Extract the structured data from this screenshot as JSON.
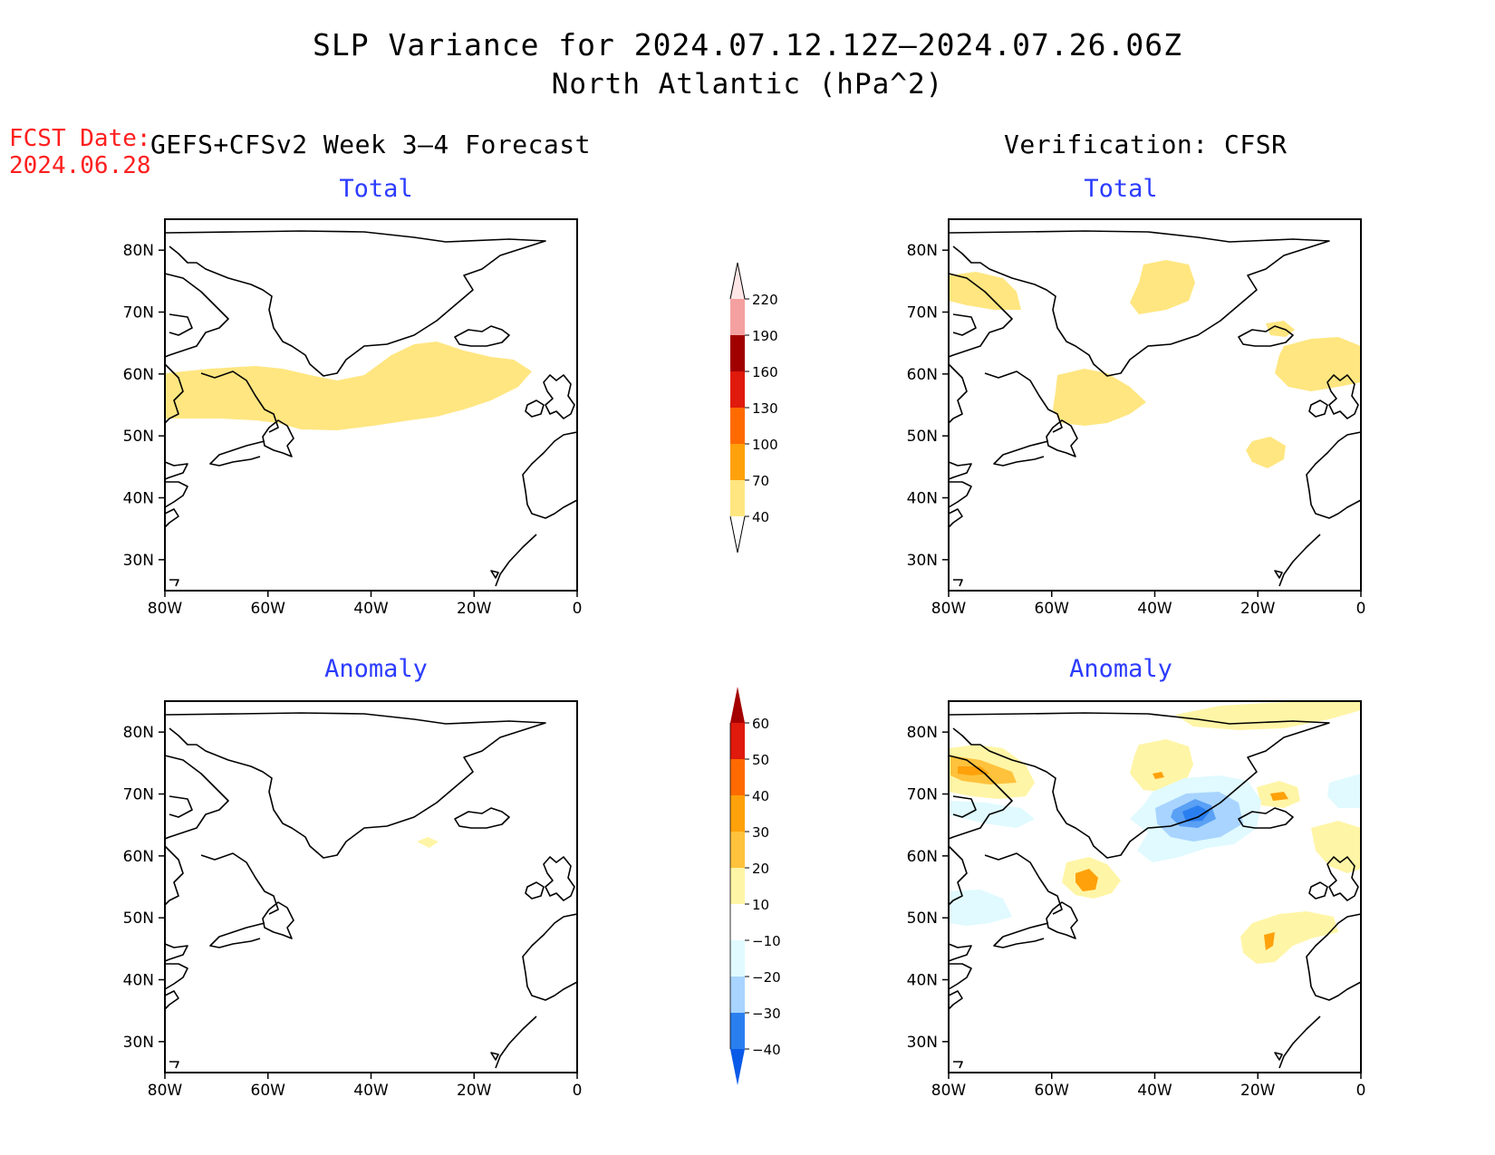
{
  "title": {
    "line1": "SLP Variance for 2024.07.12.12Z–2024.07.26.06Z",
    "line2": "North Atlantic (hPa^2)"
  },
  "forecast_date": {
    "label": "FCST Date:",
    "value": "2024.06.28"
  },
  "columns": {
    "left": "GEFS+CFSv2 Week 3–4 Forecast",
    "right": "Verification: CFSR"
  },
  "panel_titles": {
    "forecast_total": "Total",
    "verification_total": "Total",
    "forecast_anomaly": "Anomaly",
    "verification_anomaly": "Anomaly"
  },
  "map_axes": {
    "lat_labels": [
      "80N",
      "70N",
      "60N",
      "50N",
      "40N",
      "30N"
    ],
    "lat_values": [
      80,
      70,
      60,
      50,
      40,
      30
    ],
    "lon_labels": [
      "80W",
      "60W",
      "40W",
      "20W",
      "0"
    ],
    "lon_values": [
      -80,
      -60,
      -40,
      -20,
      0
    ],
    "lon_range": [
      -80,
      0
    ],
    "lat_range": [
      25,
      85
    ]
  },
  "colorbar_total": {
    "levels": [
      "220",
      "190",
      "160",
      "130",
      "100",
      "70",
      "40"
    ],
    "colors": [
      "#ffe6e6",
      "#f4a0a0",
      "#a00000",
      "#e01a0c",
      "#ff6a00",
      "#ffa10a",
      "#ffe680"
    ]
  },
  "colorbar_anomaly": {
    "levels": [
      "60",
      "50",
      "40",
      "30",
      "20",
      "10",
      "−10",
      "−20",
      "−30",
      "−40"
    ],
    "colors": [
      "#a50000",
      "#e01a0c",
      "#ff6a00",
      "#ffa10a",
      "#ffc23c",
      "#fff5a6",
      "#ffffff",
      "#e0faff",
      "#a8d4ff",
      "#2a7ff0",
      "#0a5ae8"
    ]
  }
}
